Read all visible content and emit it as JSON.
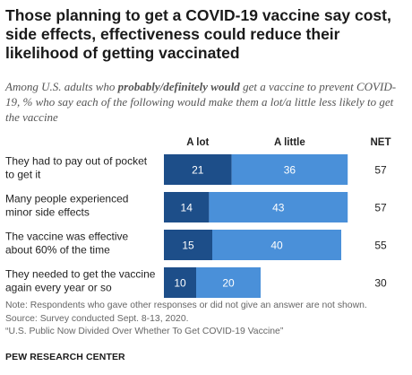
{
  "title": "Those planning to get a COVID-19 vaccine say cost, side effects, effectiveness could reduce their likelihood of getting vaccinated",
  "subtitle": {
    "before": "Among U.S. adults who ",
    "emphasis": "probably/definitely would",
    "after": " get a vaccine to prevent COVID-19, % who say each of the following would make them a lot/a little less likely to get the vaccine"
  },
  "colors": {
    "a_lot": "#1d4e89",
    "a_little": "#4a90d9"
  },
  "chart_data": {
    "type": "bar",
    "orientation": "horizontal",
    "stacked": true,
    "column_headers": [
      "A lot",
      "A little",
      "NET"
    ],
    "categories": [
      [
        "They had to pay out of pocket",
        "to get it"
      ],
      [
        "Many people experienced",
        "minor side effects"
      ],
      [
        "The vaccine was effective",
        "about 60% of the time"
      ],
      [
        "They needed to get the vaccine",
        "again every year or so"
      ]
    ],
    "series": [
      {
        "name": "A lot",
        "values": [
          21,
          14,
          15,
          10
        ]
      },
      {
        "name": "A little",
        "values": [
          36,
          43,
          40,
          20
        ]
      }
    ],
    "net": [
      57,
      57,
      55,
      30
    ],
    "legend": "column headers above bars",
    "grid": false
  },
  "notes": [
    "Note: Respondents who gave other responses or did not give an answer are not shown.",
    "Source: Survey conducted Sept. 8-13, 2020.",
    "“U.S. Public Now Divided Over Whether To Get COVID-19 Vaccine”"
  ],
  "brand": "PEW RESEARCH CENTER"
}
